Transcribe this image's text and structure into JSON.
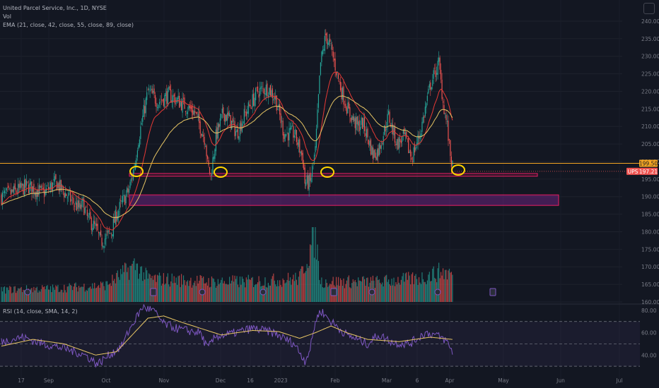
{
  "header": {
    "symbol_line": "United Parcel Service, Inc., 1D, NYSE",
    "volume_label": "Vol",
    "ema_label": "EMA (21, close, 42, close, 55, close, 89, close)",
    "rsi_label": "RSI (14, close, SMA, 14, 2)"
  },
  "price_tags": {
    "level_label": "199.50",
    "ticker_label": "UPS",
    "last_label": "197.21"
  },
  "colors": {
    "up": "#26a69a",
    "down": "#ef5350",
    "ema_fast": "#e53935",
    "ema_slow": "#e7c564",
    "rsi": "#7e57c2",
    "rsi_ma": "#e7c564",
    "level_line": "#f5a623",
    "zone_border": "#e91e63",
    "annotation": "#ffd600"
  },
  "chart_data": {
    "type": "candlestick",
    "y_axis_ticks": [
      "240.00",
      "235.00",
      "230.00",
      "225.00",
      "220.00",
      "215.00",
      "210.00",
      "205.00",
      "200.00",
      "195.00",
      "190.00",
      "185.00",
      "180.00",
      "175.00",
      "170.00",
      "165.00",
      "160.00"
    ],
    "ylim": [
      160,
      242
    ],
    "x_axis_ticks": [
      "17",
      "Sep",
      "Oct",
      "Nov",
      "Dec",
      "16",
      "2023",
      "Feb",
      "Mar",
      "6",
      "Apr",
      "May",
      "Jun",
      "Jul"
    ],
    "horizontal_level": 199.5,
    "last_price": 197.21,
    "support_zones": [
      [
        195.8,
        196.6
      ],
      [
        187.5,
        190.5
      ]
    ],
    "rsi_axis_ticks": [
      "80.00",
      "60.00",
      "40.00"
    ],
    "rsi_ylim": [
      20,
      85
    ],
    "rsi_band": [
      30,
      70
    ],
    "rsi_mid": 50,
    "e_markers": 3,
    "d_markers": 5,
    "anchors": [
      [
        0,
        190
      ],
      [
        10,
        191
      ],
      [
        25,
        193
      ],
      [
        40,
        191
      ],
      [
        52,
        194
      ],
      [
        65,
        189.5
      ],
      [
        75,
        186.5
      ],
      [
        78,
        188
      ],
      [
        82,
        184
      ],
      [
        90,
        181
      ],
      [
        95,
        177
      ],
      [
        105,
        180
      ],
      [
        110,
        185
      ],
      [
        115,
        188
      ],
      [
        122,
        192
      ],
      [
        128,
        200
      ],
      [
        130,
        205
      ],
      [
        140,
        220
      ],
      [
        150,
        217
      ],
      [
        160,
        219
      ],
      [
        175,
        216
      ],
      [
        185,
        214
      ],
      [
        195,
        206
      ],
      [
        197,
        199
      ],
      [
        200,
        196
      ],
      [
        205,
        207
      ],
      [
        212,
        214
      ],
      [
        218,
        212
      ],
      [
        225,
        208
      ],
      [
        232,
        213
      ],
      [
        245,
        220
      ],
      [
        255,
        221
      ],
      [
        262,
        218
      ],
      [
        270,
        208
      ],
      [
        280,
        208
      ],
      [
        288,
        201
      ],
      [
        290,
        194
      ],
      [
        295,
        194
      ],
      [
        300,
        203
      ],
      [
        305,
        228
      ],
      [
        310,
        236
      ],
      [
        315,
        232
      ],
      [
        320,
        226
      ],
      [
        325,
        220
      ],
      [
        332,
        214
      ],
      [
        340,
        210
      ],
      [
        345,
        211
      ],
      [
        350,
        207
      ],
      [
        355,
        202
      ],
      [
        360,
        203
      ],
      [
        370,
        213
      ],
      [
        378,
        205
      ],
      [
        385,
        207
      ],
      [
        392,
        201
      ],
      [
        400,
        208
      ],
      [
        410,
        222
      ],
      [
        418,
        228
      ],
      [
        422,
        217
      ],
      [
        426,
        210
      ],
      [
        428,
        204
      ],
      [
        431,
        198
      ]
    ],
    "volume_anchors": [
      [
        0,
        0.18
      ],
      [
        50,
        0.2
      ],
      [
        100,
        0.25
      ],
      [
        128,
        0.55
      ],
      [
        140,
        0.35
      ],
      [
        200,
        0.3
      ],
      [
        230,
        0.3
      ],
      [
        260,
        0.32
      ],
      [
        285,
        0.35
      ],
      [
        300,
        1.0
      ],
      [
        305,
        0.3
      ],
      [
        360,
        0.3
      ],
      [
        400,
        0.35
      ],
      [
        420,
        0.45
      ],
      [
        431,
        0.42
      ]
    ],
    "rsi_anchors": [
      [
        0,
        52
      ],
      [
        20,
        56
      ],
      [
        40,
        50
      ],
      [
        60,
        46
      ],
      [
        80,
        40
      ],
      [
        92,
        32
      ],
      [
        100,
        38
      ],
      [
        115,
        48
      ],
      [
        122,
        62
      ],
      [
        128,
        72
      ],
      [
        135,
        83
      ],
      [
        145,
        80
      ],
      [
        155,
        68
      ],
      [
        170,
        63
      ],
      [
        190,
        60
      ],
      [
        197,
        46
      ],
      [
        205,
        57
      ],
      [
        215,
        58
      ],
      [
        240,
        64
      ],
      [
        260,
        60
      ],
      [
        280,
        50
      ],
      [
        290,
        35
      ],
      [
        295,
        45
      ],
      [
        300,
        70
      ],
      [
        305,
        80
      ],
      [
        315,
        70
      ],
      [
        330,
        58
      ],
      [
        350,
        50
      ],
      [
        360,
        58
      ],
      [
        375,
        51
      ],
      [
        390,
        50
      ],
      [
        405,
        60
      ],
      [
        415,
        58
      ],
      [
        425,
        53
      ],
      [
        431,
        43
      ]
    ],
    "rsi_ma_anchors": [
      [
        0,
        48
      ],
      [
        30,
        54
      ],
      [
        60,
        50
      ],
      [
        90,
        40
      ],
      [
        110,
        43
      ],
      [
        125,
        58
      ],
      [
        140,
        73
      ],
      [
        155,
        75
      ],
      [
        170,
        70
      ],
      [
        190,
        64
      ],
      [
        210,
        58
      ],
      [
        240,
        62
      ],
      [
        265,
        61
      ],
      [
        285,
        55
      ],
      [
        300,
        60
      ],
      [
        315,
        66
      ],
      [
        330,
        60
      ],
      [
        350,
        54
      ],
      [
        380,
        52
      ],
      [
        410,
        56
      ],
      [
        431,
        54
      ]
    ]
  }
}
